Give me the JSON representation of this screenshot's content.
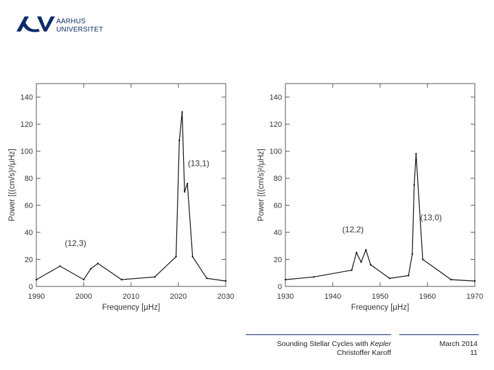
{
  "header": {
    "logo_line1": "AARHUS",
    "logo_line2": "UNIVERSITET",
    "brand_color": "#0b2a6f"
  },
  "chart_data": [
    {
      "type": "line",
      "title": "",
      "xlabel": "Frequency [µHz]",
      "ylabel": "Power [((cm/s)²/µHz]",
      "xlim": [
        1990,
        2030
      ],
      "ylim": [
        0,
        150
      ],
      "xticks": [
        1990,
        2000,
        2010,
        2020,
        2030
      ],
      "yticks": [
        0,
        20,
        40,
        60,
        80,
        100,
        120,
        140
      ],
      "annotations": [
        {
          "text": "(12,3)",
          "x": 1996,
          "y": 30
        },
        {
          "text": "(13,1)",
          "x": 2022,
          "y": 89
        }
      ],
      "series": [
        {
          "x": [
            1990,
            1995,
            2000,
            2001.5,
            2003,
            2008,
            2015,
            2019.5,
            2020.2,
            2020.8,
            2021.3,
            2021.9,
            2023,
            2026,
            2030
          ],
          "y": [
            5,
            15,
            5,
            13,
            17,
            5,
            7,
            22,
            108,
            129,
            70,
            76,
            22,
            6,
            4
          ]
        }
      ]
    },
    {
      "type": "line",
      "title": "",
      "xlabel": "Frequency [µHz]",
      "ylabel": "Power [((cm/s)²/µHz]",
      "xlim": [
        1930,
        1970
      ],
      "ylim": [
        0,
        150
      ],
      "xticks": [
        1930,
        1940,
        1950,
        1960,
        1970
      ],
      "yticks": [
        0,
        20,
        40,
        60,
        80,
        100,
        120,
        140
      ],
      "annotations": [
        {
          "text": "(12,2)",
          "x": 1942,
          "y": 40
        },
        {
          "text": "(13,0)",
          "x": 1958.5,
          "y": 49
        }
      ],
      "series": [
        {
          "x": [
            1930,
            1936,
            1944,
            1945,
            1946,
            1947,
            1948,
            1952,
            1956,
            1956.8,
            1957.2,
            1957.6,
            1959,
            1965,
            1970
          ],
          "y": [
            5,
            7,
            12,
            25,
            18,
            27,
            16,
            6,
            8,
            24,
            75,
            98,
            20,
            5,
            4
          ]
        }
      ]
    }
  ],
  "footer": {
    "line1_prefix": "Sounding Stellar Cycles with ",
    "line1_italic": "Kepler",
    "line2": "Christoffer Karoff",
    "date": "March 2014",
    "page": "11"
  }
}
